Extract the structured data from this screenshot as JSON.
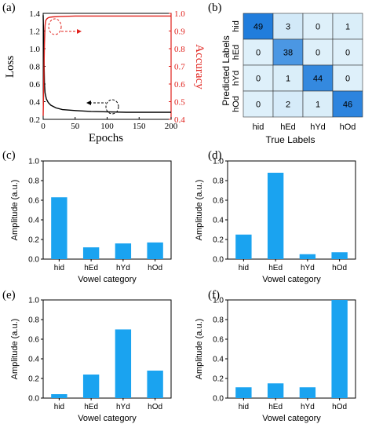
{
  "chart_data": [
    {
      "panel": "(a)",
      "type": "line",
      "xlabel": "Epochs",
      "ylabel": "Loss",
      "y2label": "Accuracy",
      "xlim": [
        0,
        200
      ],
      "ylim": [
        0.2,
        1.4
      ],
      "y2lim": [
        0.4,
        1.0
      ],
      "xticks": [
        "0",
        "50",
        "100",
        "150",
        "200"
      ],
      "yticks": [
        "0.2",
        "0.4",
        "0.6",
        "0.8",
        "1.0",
        "1.2",
        "1.4"
      ],
      "y2ticks": [
        "0.4",
        "0.5",
        "0.6",
        "0.7",
        "0.8",
        "0.9",
        "1.0"
      ],
      "series": [
        {
          "axis": "left",
          "color": "#000000",
          "x": [
            0,
            1,
            2,
            3,
            5,
            8,
            12,
            20,
            30,
            50,
            75,
            100,
            130,
            160,
            200
          ],
          "y": [
            1.38,
            1.05,
            0.62,
            0.5,
            0.43,
            0.39,
            0.36,
            0.33,
            0.31,
            0.3,
            0.29,
            0.285,
            0.28,
            0.28,
            0.28
          ]
        },
        {
          "axis": "right",
          "color": "#e0201b",
          "x": [
            0,
            1,
            2,
            3,
            4,
            6,
            8,
            10,
            15,
            25,
            50,
            100,
            150,
            200
          ],
          "y": [
            0.42,
            0.62,
            0.82,
            0.93,
            0.96,
            0.97,
            0.975,
            0.978,
            0.98,
            0.982,
            0.985,
            0.985,
            0.985,
            0.985
          ]
        }
      ]
    },
    {
      "panel": "(b)",
      "type": "heatmap",
      "xlabel": "True  Labels",
      "ylabel": "Predicted  Labels",
      "x_categories": [
        "hid",
        "hEd",
        "hYd",
        "hOd"
      ],
      "y_categories": [
        "hid",
        "hEd",
        "hYd",
        "hOd"
      ],
      "values": [
        [
          49,
          3,
          0,
          1
        ],
        [
          0,
          38,
          0,
          0
        ],
        [
          0,
          1,
          44,
          0
        ],
        [
          0,
          2,
          1,
          46
        ]
      ]
    },
    {
      "panel": "(c)",
      "type": "bar",
      "categories": [
        "hid",
        "hEd",
        "hYd",
        "hOd"
      ],
      "values": [
        0.63,
        0.12,
        0.16,
        0.17
      ],
      "ylim": [
        0,
        1.0
      ],
      "yticks": [
        "0.0",
        "0.2",
        "0.4",
        "0.6",
        "0.8",
        "1.0"
      ],
      "xlabel": "Vowel category",
      "ylabel": "Amplitude (a.u.)"
    },
    {
      "panel": "(d)",
      "type": "bar",
      "categories": [
        "hid",
        "hEd",
        "hYd",
        "hOd"
      ],
      "values": [
        0.25,
        0.88,
        0.05,
        0.07
      ],
      "ylim": [
        0,
        1.0
      ],
      "yticks": [
        "0.0",
        "0.2",
        "0.4",
        "0.6",
        "0.8",
        "1.0"
      ],
      "xlabel": "Vowel category",
      "ylabel": "Amplitude (a.u.)"
    },
    {
      "panel": "(e)",
      "type": "bar",
      "categories": [
        "hid",
        "hEd",
        "hYd",
        "hOd"
      ],
      "values": [
        0.04,
        0.24,
        0.7,
        0.28
      ],
      "ylim": [
        0,
        1.0
      ],
      "yticks": [
        "0.0",
        "0.2",
        "0.4",
        "0.6",
        "0.8",
        "1.0"
      ],
      "xlabel": "Vowel category",
      "ylabel": "Amplitude (a.u.)"
    },
    {
      "panel": "(f)",
      "type": "bar",
      "categories": [
        "hid",
        "hEd",
        "hYd",
        "hOd"
      ],
      "values": [
        0.11,
        0.15,
        0.11,
        1.0
      ],
      "ylim": [
        0,
        1.0
      ],
      "yticks": [
        "0.0",
        "0.2",
        "0.4",
        "0.6",
        "0.8",
        "1.0"
      ],
      "xlabel": "Vowel category",
      "ylabel": "Amplitude (a.u.)"
    }
  ]
}
